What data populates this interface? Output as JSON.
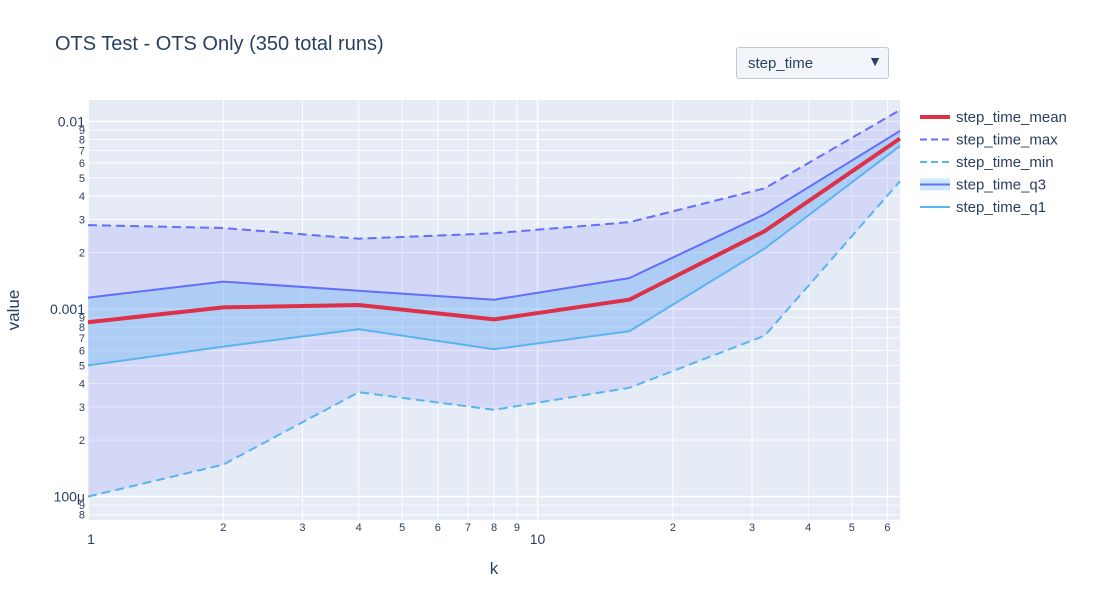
{
  "title": "OTS Test - OTS Only (350 total runs)",
  "dropdown": {
    "selected": "step_time",
    "arrow_icon": "triangle-down-icon"
  },
  "colors": {
    "plot_bg": "#e5ecf6",
    "grid": "#ffffff",
    "mean": "#dc3149",
    "max": "#636efa",
    "min": "#5ab4f0",
    "q3": "#636efa",
    "q1": "#5ab4f0",
    "minmax_band": "rgba(99,110,250,0.15)",
    "quartile_band": "rgba(90,180,240,0.30)"
  },
  "chart_data": {
    "type": "line",
    "title": "OTS Test - OTS Only (350 total runs)",
    "xlabel": "k",
    "ylabel": "value",
    "x_scale": "log",
    "y_scale": "log",
    "xlim": [
      1,
      64
    ],
    "ylim": [
      7.5e-05,
      0.013
    ],
    "grid": true,
    "legend_position": "right",
    "x_tick_labels": [
      {
        "v": 1,
        "t": "1",
        "major": true
      },
      {
        "v": 2,
        "t": "2",
        "major": false
      },
      {
        "v": 3,
        "t": "3",
        "major": false
      },
      {
        "v": 4,
        "t": "4",
        "major": false
      },
      {
        "v": 5,
        "t": "5",
        "major": false
      },
      {
        "v": 6,
        "t": "6",
        "major": false
      },
      {
        "v": 7,
        "t": "7",
        "major": false
      },
      {
        "v": 8,
        "t": "8",
        "major": false
      },
      {
        "v": 9,
        "t": "9",
        "major": false
      },
      {
        "v": 10,
        "t": "10",
        "major": true
      },
      {
        "v": 20,
        "t": "2",
        "major": false
      },
      {
        "v": 30,
        "t": "3",
        "major": false
      },
      {
        "v": 40,
        "t": "4",
        "major": false
      },
      {
        "v": 50,
        "t": "5",
        "major": false
      },
      {
        "v": 60,
        "t": "6",
        "major": false
      }
    ],
    "y_tick_labels": [
      {
        "v": 8e-05,
        "t": "8",
        "major": false
      },
      {
        "v": 9e-05,
        "t": "9",
        "major": false
      },
      {
        "v": 0.0001,
        "t": "100μ",
        "major": true
      },
      {
        "v": 0.0002,
        "t": "2",
        "major": false
      },
      {
        "v": 0.0003,
        "t": "3",
        "major": false
      },
      {
        "v": 0.0004,
        "t": "4",
        "major": false
      },
      {
        "v": 0.0005,
        "t": "5",
        "major": false
      },
      {
        "v": 0.0006,
        "t": "6",
        "major": false
      },
      {
        "v": 0.0007,
        "t": "7",
        "major": false
      },
      {
        "v": 0.0008,
        "t": "8",
        "major": false
      },
      {
        "v": 0.0009,
        "t": "9",
        "major": false
      },
      {
        "v": 0.001,
        "t": "0.001",
        "major": true
      },
      {
        "v": 0.002,
        "t": "2",
        "major": false
      },
      {
        "v": 0.003,
        "t": "3",
        "major": false
      },
      {
        "v": 0.004,
        "t": "4",
        "major": false
      },
      {
        "v": 0.005,
        "t": "5",
        "major": false
      },
      {
        "v": 0.006,
        "t": "6",
        "major": false
      },
      {
        "v": 0.007,
        "t": "7",
        "major": false
      },
      {
        "v": 0.008,
        "t": "8",
        "major": false
      },
      {
        "v": 0.009,
        "t": "9",
        "major": false
      },
      {
        "v": 0.01,
        "t": "0.01",
        "major": true
      }
    ],
    "x": [
      1,
      2,
      4,
      8,
      16,
      32,
      64
    ],
    "series": [
      {
        "name": "step_time_mean",
        "dash": "solid",
        "width": 4,
        "values": [
          0.00085,
          0.00102,
          0.00105,
          0.00088,
          0.00112,
          0.0026,
          0.0081
        ]
      },
      {
        "name": "step_time_max",
        "dash": "dash",
        "width": 2,
        "values": [
          0.0028,
          0.0027,
          0.00237,
          0.00253,
          0.0029,
          0.0044,
          0.0115
        ]
      },
      {
        "name": "step_time_min",
        "dash": "dash",
        "width": 2,
        "values": [
          0.0001,
          0.000148,
          0.00036,
          0.00029,
          0.00038,
          0.00072,
          0.0048
        ]
      },
      {
        "name": "step_time_q3",
        "dash": "solid",
        "width": 2,
        "values": [
          0.00115,
          0.0014,
          0.00125,
          0.00112,
          0.00146,
          0.0032,
          0.0089
        ]
      },
      {
        "name": "step_time_q1",
        "dash": "solid",
        "width": 2,
        "values": [
          0.0005,
          0.00063,
          0.00078,
          0.00061,
          0.00076,
          0.0021,
          0.0074
        ]
      }
    ]
  }
}
